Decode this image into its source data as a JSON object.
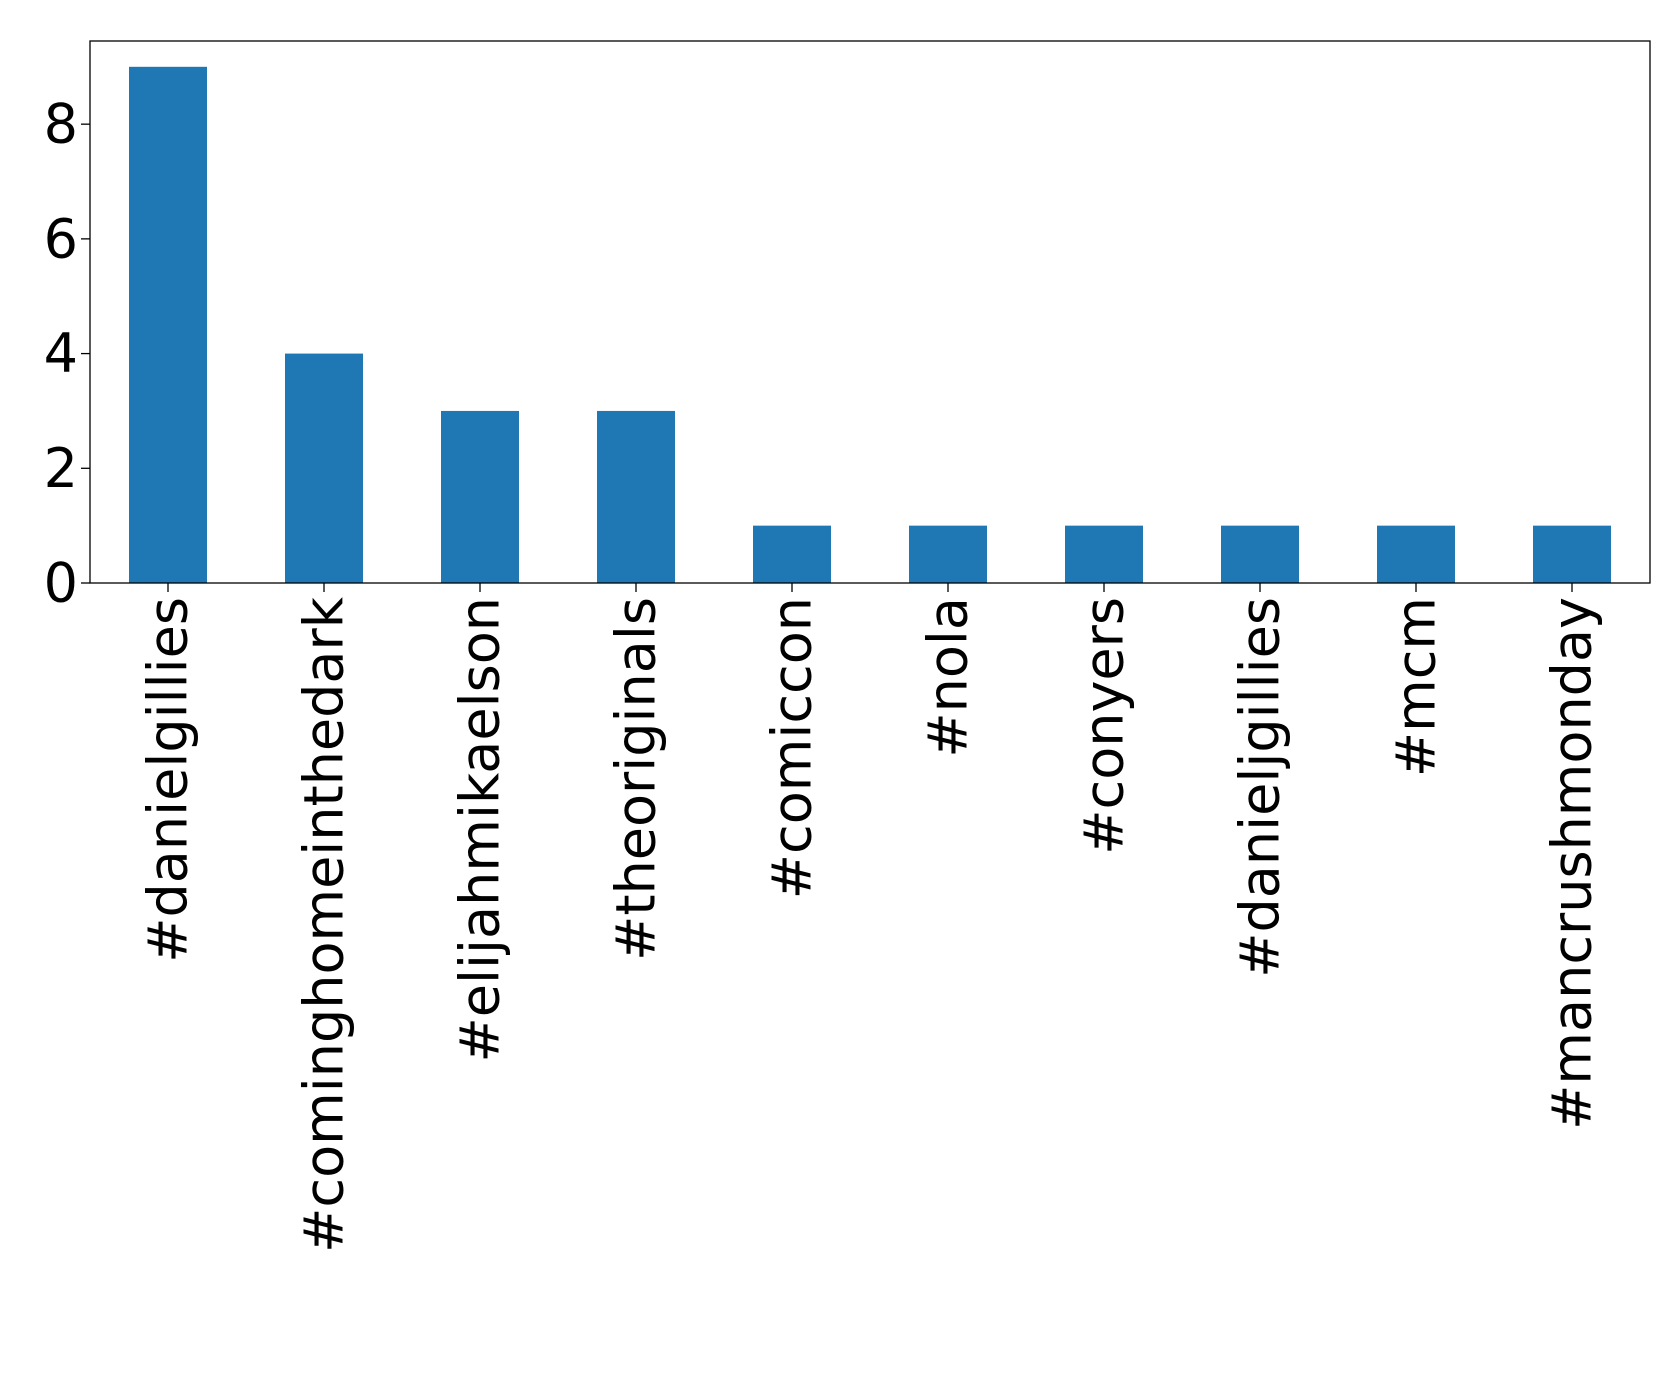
{
  "chart_data": {
    "type": "bar",
    "categories": [
      "#danielgillies",
      "#cominghomeinthedark",
      "#elijahmikaelson",
      "#theoriginals",
      "#comiccon",
      "#nola",
      "#conyers",
      "#danieljgillies",
      "#mcm",
      "#mancrushmonday"
    ],
    "values": [
      9,
      4,
      3,
      3,
      1,
      1,
      1,
      1,
      1,
      1
    ],
    "yticks": [
      0,
      2,
      4,
      6,
      8
    ],
    "ylim": [
      0,
      9.45
    ],
    "grid": false,
    "bar_color": "#1f77b4",
    "title": "",
    "xlabel": "",
    "ylabel": ""
  }
}
